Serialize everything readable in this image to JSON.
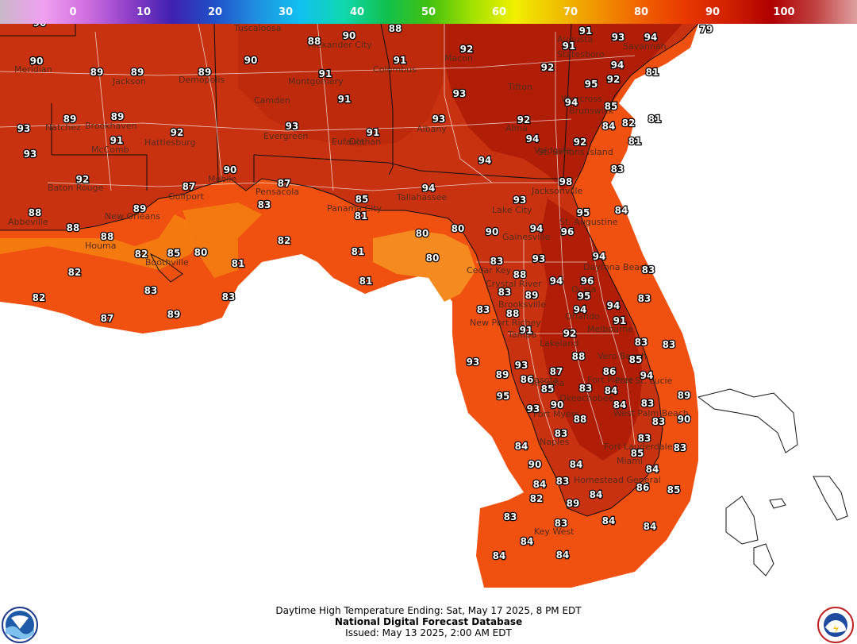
{
  "colorbar": {
    "ticks": [
      "0",
      "10",
      "20",
      "30",
      "40",
      "50",
      "60",
      "70",
      "80",
      "90",
      "100"
    ],
    "colors": [
      "#c8b8c8",
      "#f0a0f0",
      "#d070e0",
      "#9040c8",
      "#4020b0",
      "#2050c8",
      "#2090e0",
      "#10c0f0",
      "#10d8b0",
      "#10c050",
      "#40c010",
      "#a0e000",
      "#f0f000",
      "#f0c000",
      "#f09000",
      "#f06000",
      "#e83800",
      "#d02000",
      "#b00000",
      "#c04040",
      "#e0a0a0"
    ]
  },
  "footer": {
    "line1": "Daytime High Temperature Ending: Sat, May 17 2025, 8 PM EDT",
    "line2": "National Digital Forecast Database",
    "line3": "Issued: May 13 2025, 2:00 AM EDT"
  },
  "logos": {
    "left": "noaa-logo",
    "right": "nws-logo"
  },
  "cities": [
    "Tuscaloosa",
    "Alexander City",
    "Columbus",
    "Macon",
    "Augusta",
    "Statesboro",
    "Savannah",
    "Meridian",
    "Jackson",
    "Demopolis",
    "Montgomery",
    "Tifton",
    "Waycross",
    "Brunswick",
    "Natchez",
    "Brookhaven",
    "McComb",
    "Hattiesburg",
    "Camden",
    "Eufaula",
    "Albany",
    "Valdosta",
    "Evergreen",
    "Dothan",
    "Alma",
    "St. Simons Island",
    "Baton Rouge",
    "Gulfport",
    "Mobile",
    "Pensacola",
    "Panama City",
    "Tallahassee",
    "Jacksonville",
    "Lake City",
    "St. Augustine",
    "Gainesville",
    "Abbeville",
    "New Orleans",
    "Houma",
    "Boothville",
    "Cedar Key",
    "Crystal River",
    "Daytona Beach",
    "Ocala",
    "Brooksville",
    "New Port Richey",
    "Tampa",
    "Orlando",
    "Melbourne",
    "Lakeland",
    "Sarasota",
    "Vero Beach",
    "Fort Pierce",
    "Arcadia",
    "Port St. Lucie",
    "Okeechobee",
    "Fort Myers",
    "Naples",
    "West Palm Beach",
    "Fort Lauderdale",
    "Miami",
    "Homestead General",
    "Key West"
  ],
  "temps": [
    [
      "90"
    ],
    [
      "88"
    ],
    [
      "90"
    ],
    [
      "88"
    ],
    [
      "91"
    ],
    [
      "93"
    ],
    [
      "94"
    ],
    [
      "79"
    ],
    [
      "91"
    ],
    [
      "92"
    ],
    [
      "91"
    ],
    [
      "92"
    ],
    [
      "93"
    ],
    [
      "89"
    ],
    [
      "89"
    ],
    [
      "89"
    ],
    [
      "90"
    ],
    [
      "91"
    ],
    [
      "94"
    ],
    [
      "81"
    ],
    [
      "92"
    ],
    [
      "95"
    ],
    [
      "90"
    ],
    [
      "91"
    ],
    [
      "93"
    ],
    [
      "94"
    ],
    [
      "85"
    ],
    [
      "81"
    ],
    [
      "89"
    ],
    [
      "89"
    ],
    [
      "92"
    ],
    [
      "93"
    ],
    [
      "93"
    ],
    [
      "92"
    ],
    [
      "84"
    ],
    [
      "82"
    ],
    [
      "93"
    ],
    [
      "91"
    ],
    [
      "91"
    ],
    [
      "94"
    ],
    [
      "92"
    ],
    [
      "81"
    ],
    [
      "93"
    ],
    [
      "94"
    ],
    [
      "83"
    ],
    [
      "92"
    ],
    [
      "90"
    ],
    [
      "87"
    ],
    [
      "87"
    ],
    [
      "98"
    ],
    [
      "85"
    ],
    [
      "94"
    ],
    [
      "93"
    ],
    [
      "95"
    ],
    [
      "84"
    ],
    [
      "88"
    ],
    [
      "89"
    ],
    [
      "83"
    ],
    [
      "81"
    ],
    [
      "80"
    ],
    [
      "80"
    ],
    [
      "90"
    ],
    [
      "94"
    ],
    [
      "96"
    ],
    [
      "88"
    ],
    [
      "88"
    ],
    [
      "82"
    ],
    [
      "85"
    ],
    [
      "80"
    ],
    [
      "81"
    ],
    [
      "81"
    ],
    [
      "82"
    ],
    [
      "80"
    ],
    [
      "83"
    ],
    [
      "93"
    ],
    [
      "94"
    ],
    [
      "88"
    ],
    [
      "94"
    ],
    [
      "96"
    ],
    [
      "83"
    ],
    [
      "81"
    ],
    [
      "83"
    ],
    [
      "89"
    ],
    [
      "95"
    ],
    [
      "83"
    ],
    [
      "82"
    ],
    [
      "83"
    ],
    [
      "88"
    ],
    [
      "94"
    ],
    [
      "94"
    ],
    [
      "83"
    ],
    [
      "82"
    ],
    [
      "83"
    ],
    [
      "91"
    ],
    [
      "91"
    ],
    [
      "92"
    ],
    [
      "83"
    ],
    [
      "83"
    ],
    [
      "89"
    ],
    [
      "87"
    ],
    [
      "88"
    ],
    [
      "93"
    ],
    [
      "93"
    ],
    [
      "87"
    ],
    [
      "86"
    ],
    [
      "85"
    ],
    [
      "86"
    ],
    [
      "85"
    ],
    [
      "94"
    ],
    [
      "89"
    ],
    [
      "83"
    ],
    [
      "84"
    ],
    [
      "89"
    ],
    [
      "93"
    ],
    [
      "90"
    ],
    [
      "84"
    ],
    [
      "83"
    ],
    [
      "95"
    ],
    [
      "90"
    ],
    [
      "88"
    ],
    [
      "83"
    ],
    [
      "83"
    ],
    [
      "84"
    ],
    [
      "90"
    ],
    [
      "83"
    ],
    [
      "85"
    ],
    [
      "83"
    ],
    [
      "84"
    ],
    [
      "84"
    ],
    [
      "84"
    ],
    [
      "83"
    ],
    [
      "86"
    ],
    [
      "85"
    ],
    [
      "82"
    ],
    [
      "89"
    ],
    [
      "84"
    ],
    [
      "83"
    ],
    [
      "83"
    ],
    [
      "84"
    ],
    [
      "84"
    ],
    [
      "84"
    ],
    [
      "84"
    ],
    [
      "84"
    ]
  ],
  "units": "°F"
}
